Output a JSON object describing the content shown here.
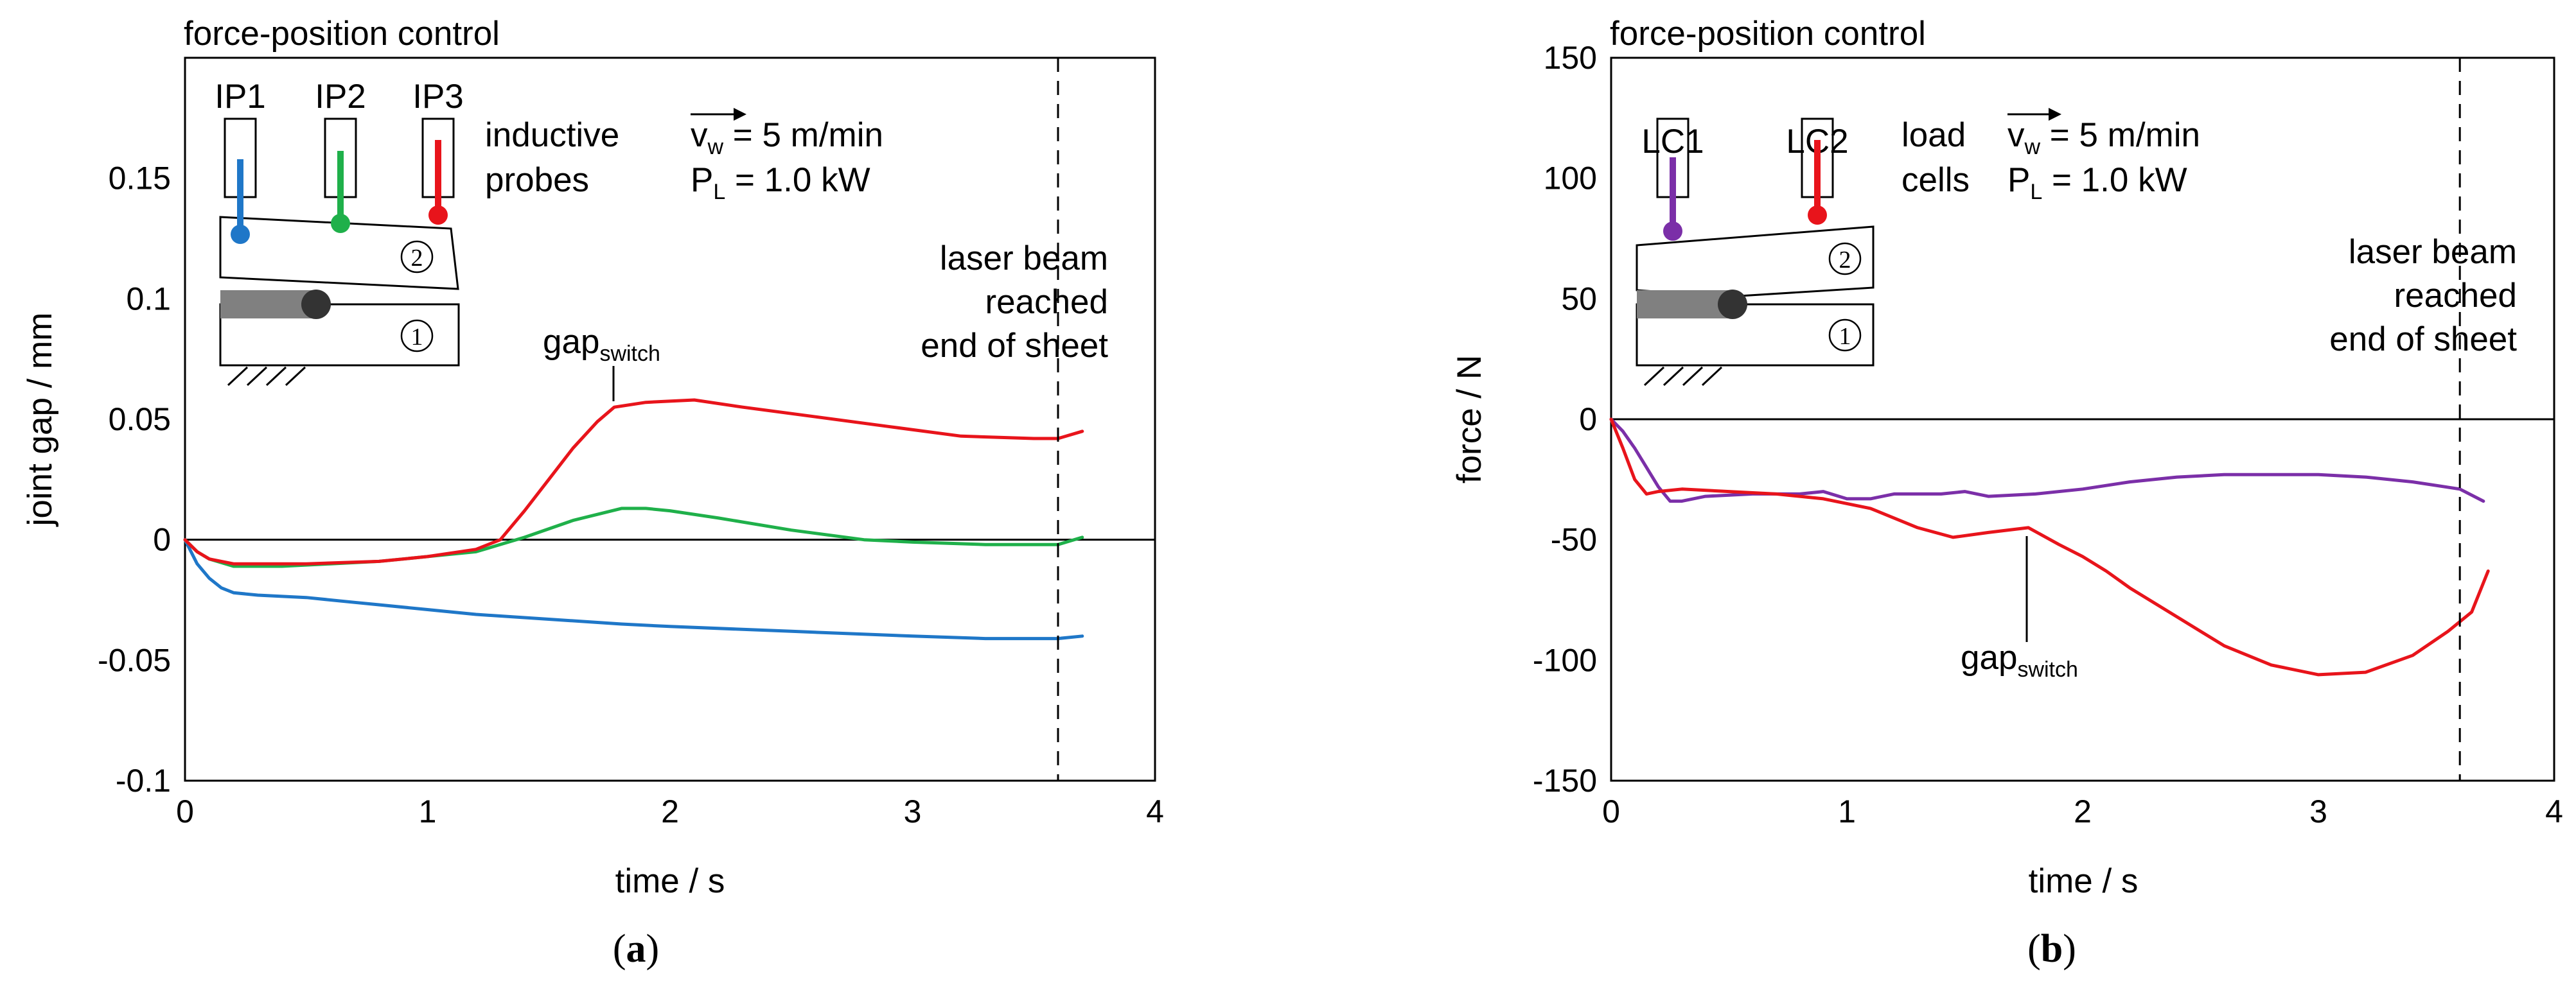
{
  "chart_data": [
    {
      "type": "line",
      "panel_label": "a",
      "title": "force-position control",
      "xlabel": "time / s",
      "ylabel": "joint gap / mm",
      "xlim": [
        0,
        4
      ],
      "ylim": [
        -0.1,
        0.2
      ],
      "xticks": [
        "0",
        "1",
        "2",
        "3",
        "4"
      ],
      "yticks": [
        {
          "v": -0.1,
          "label": "-0.1"
        },
        {
          "v": -0.05,
          "label": "-0.05"
        },
        {
          "v": 0,
          "label": "0"
        },
        {
          "v": 0.05,
          "label": "0.05"
        },
        {
          "v": 0.1,
          "label": "0.1"
        },
        {
          "v": 0.15,
          "label": "0.15"
        }
      ],
      "grid": false,
      "zero_line": true,
      "vline_x": 3.6,
      "annotations": {
        "end_of_sheet": [
          "laser beam",
          "reached",
          "end of sheet"
        ],
        "gap_switch": {
          "base": "gap",
          "sub": "switch",
          "x": 1.77,
          "y": 0.055
        },
        "velocity": {
          "base": "v",
          "sub": "w",
          "rest": " = 5 m/min"
        },
        "power": {
          "base": "P",
          "sub": "L",
          "rest": " = 1.0 kW"
        },
        "sensor_desc": [
          "inductive",
          "probes"
        ],
        "sheet_numbers": [
          "2",
          "1"
        ]
      },
      "sensors": [
        {
          "label": "IP1",
          "color": "#1f77c8"
        },
        {
          "label": "IP2",
          "color": "#1fb04a"
        },
        {
          "label": "IP3",
          "color": "#e8141b"
        }
      ],
      "series": [
        {
          "name": "IP1",
          "color": "#1f77c8",
          "points": [
            [
              0,
              0
            ],
            [
              0.05,
              -0.01
            ],
            [
              0.1,
              -0.016
            ],
            [
              0.15,
              -0.02
            ],
            [
              0.2,
              -0.022
            ],
            [
              0.3,
              -0.023
            ],
            [
              0.5,
              -0.024
            ],
            [
              0.7,
              -0.026
            ],
            [
              0.8,
              -0.027
            ],
            [
              1.0,
              -0.029
            ],
            [
              1.2,
              -0.031
            ],
            [
              1.5,
              -0.033
            ],
            [
              1.8,
              -0.035
            ],
            [
              2.0,
              -0.036
            ],
            [
              2.5,
              -0.038
            ],
            [
              3.0,
              -0.04
            ],
            [
              3.3,
              -0.041
            ],
            [
              3.6,
              -0.041
            ],
            [
              3.7,
              -0.04
            ]
          ]
        },
        {
          "name": "IP2",
          "color": "#1fb04a",
          "points": [
            [
              0,
              0
            ],
            [
              0.05,
              -0.005
            ],
            [
              0.1,
              -0.008
            ],
            [
              0.2,
              -0.011
            ],
            [
              0.4,
              -0.011
            ],
            [
              0.6,
              -0.01
            ],
            [
              0.8,
              -0.009
            ],
            [
              1.0,
              -0.007
            ],
            [
              1.2,
              -0.005
            ],
            [
              1.4,
              0.001
            ],
            [
              1.6,
              0.008
            ],
            [
              1.8,
              0.013
            ],
            [
              1.9,
              0.013
            ],
            [
              2.0,
              0.012
            ],
            [
              2.2,
              0.009
            ],
            [
              2.5,
              0.004
            ],
            [
              2.8,
              0.0
            ],
            [
              3.0,
              -0.001
            ],
            [
              3.3,
              -0.002
            ],
            [
              3.6,
              -0.002
            ],
            [
              3.7,
              0.001
            ]
          ]
        },
        {
          "name": "IP3",
          "color": "#e8141b",
          "points": [
            [
              0,
              0
            ],
            [
              0.05,
              -0.005
            ],
            [
              0.1,
              -0.008
            ],
            [
              0.2,
              -0.01
            ],
            [
              0.5,
              -0.01
            ],
            [
              0.8,
              -0.009
            ],
            [
              1.0,
              -0.007
            ],
            [
              1.2,
              -0.004
            ],
            [
              1.3,
              0.0
            ],
            [
              1.4,
              0.012
            ],
            [
              1.5,
              0.025
            ],
            [
              1.6,
              0.038
            ],
            [
              1.7,
              0.049
            ],
            [
              1.77,
              0.055
            ],
            [
              1.9,
              0.057
            ],
            [
              2.1,
              0.058
            ],
            [
              2.3,
              0.055
            ],
            [
              2.6,
              0.051
            ],
            [
              2.9,
              0.047
            ],
            [
              3.2,
              0.043
            ],
            [
              3.5,
              0.042
            ],
            [
              3.6,
              0.042
            ],
            [
              3.7,
              0.045
            ]
          ]
        }
      ]
    },
    {
      "type": "line",
      "panel_label": "b",
      "title": "force-position control",
      "xlabel": "time / s",
      "ylabel": "force / N",
      "xlim": [
        0,
        4
      ],
      "ylim": [
        -150,
        150
      ],
      "xticks": [
        "0",
        "1",
        "2",
        "3",
        "4"
      ],
      "yticks": [
        {
          "v": -150,
          "label": "-150"
        },
        {
          "v": -100,
          "label": "-100"
        },
        {
          "v": -50,
          "label": "-50"
        },
        {
          "v": 0,
          "label": "0"
        },
        {
          "v": 50,
          "label": "50"
        },
        {
          "v": 100,
          "label": "100"
        },
        {
          "v": 150,
          "label": "150"
        }
      ],
      "grid": false,
      "zero_line": true,
      "vline_x": 3.6,
      "annotations": {
        "end_of_sheet": [
          "laser beam",
          "reached",
          "end of sheet"
        ],
        "gap_switch": {
          "base": "gap",
          "sub": "switch",
          "x": 1.77,
          "y": -46
        },
        "velocity": {
          "base": "v",
          "sub": "w",
          "rest": " = 5 m/min"
        },
        "power": {
          "base": "P",
          "sub": "L",
          "rest": " = 1.0 kW"
        },
        "sensor_desc": [
          "load",
          "cells"
        ],
        "sheet_numbers": [
          "2",
          "1"
        ]
      },
      "sensors": [
        {
          "label": "LC1",
          "color": "#7b2fa8"
        },
        {
          "label": "LC2",
          "color": "#e8141b"
        }
      ],
      "series": [
        {
          "name": "LC1",
          "color": "#7b2fa8",
          "points": [
            [
              0,
              0
            ],
            [
              0.05,
              -5
            ],
            [
              0.1,
              -12
            ],
            [
              0.15,
              -20
            ],
            [
              0.2,
              -28
            ],
            [
              0.25,
              -34
            ],
            [
              0.3,
              -34
            ],
            [
              0.4,
              -32
            ],
            [
              0.6,
              -31
            ],
            [
              0.8,
              -31
            ],
            [
              0.9,
              -30
            ],
            [
              1.0,
              -33
            ],
            [
              1.1,
              -33
            ],
            [
              1.2,
              -31
            ],
            [
              1.4,
              -31
            ],
            [
              1.5,
              -30
            ],
            [
              1.6,
              -32
            ],
            [
              1.8,
              -31
            ],
            [
              2.0,
              -29
            ],
            [
              2.2,
              -26
            ],
            [
              2.4,
              -24
            ],
            [
              2.6,
              -23
            ],
            [
              2.8,
              -23
            ],
            [
              3.0,
              -23
            ],
            [
              3.2,
              -24
            ],
            [
              3.4,
              -26
            ],
            [
              3.6,
              -29
            ],
            [
              3.7,
              -34
            ]
          ]
        },
        {
          "name": "LC2",
          "color": "#e8141b",
          "points": [
            [
              0,
              0
            ],
            [
              0.05,
              -12
            ],
            [
              0.1,
              -25
            ],
            [
              0.15,
              -31
            ],
            [
              0.2,
              -30
            ],
            [
              0.3,
              -29
            ],
            [
              0.5,
              -30
            ],
            [
              0.7,
              -31
            ],
            [
              0.9,
              -33
            ],
            [
              1.1,
              -37
            ],
            [
              1.3,
              -45
            ],
            [
              1.45,
              -49
            ],
            [
              1.6,
              -47
            ],
            [
              1.77,
              -45
            ],
            [
              1.9,
              -52
            ],
            [
              2.0,
              -57
            ],
            [
              2.1,
              -63
            ],
            [
              2.2,
              -70
            ],
            [
              2.4,
              -82
            ],
            [
              2.6,
              -94
            ],
            [
              2.8,
              -102
            ],
            [
              3.0,
              -106
            ],
            [
              3.2,
              -105
            ],
            [
              3.4,
              -98
            ],
            [
              3.55,
              -88
            ],
            [
              3.65,
              -80
            ],
            [
              3.72,
              -63
            ]
          ]
        }
      ]
    }
  ]
}
